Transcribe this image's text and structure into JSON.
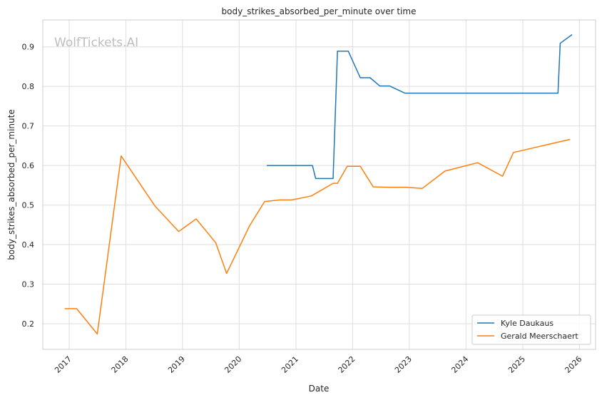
{
  "chart_data": {
    "type": "line",
    "title": "body_strikes_absorbed_per_minute over time",
    "xlabel": "Date",
    "ylabel": "body_strikes_absorbed_per_minute",
    "watermark": "WolfTickets.AI",
    "x_ticks": [
      "2017",
      "2018",
      "2019",
      "2020",
      "2021",
      "2022",
      "2023",
      "2024",
      "2025",
      "2026"
    ],
    "y_ticks": [
      "0.2",
      "0.3",
      "0.4",
      "0.5",
      "0.6",
      "0.7",
      "0.8",
      "0.9"
    ],
    "xlim": [
      "2016-07-15",
      "2026-04-15"
    ],
    "ylim": [
      0.135,
      0.968
    ],
    "grid": true,
    "legend_position": "lower-right",
    "series": [
      {
        "name": "Kyle Daukaus",
        "color": "#1f77b4",
        "points": [
          [
            "2020-06-27",
            0.6
          ],
          [
            "2021-04-17",
            0.6
          ],
          [
            "2021-05-08",
            0.567
          ],
          [
            "2021-08-28",
            0.567
          ],
          [
            "2021-09-25",
            0.889
          ],
          [
            "2021-12-04",
            0.889
          ],
          [
            "2022-02-19",
            0.822
          ],
          [
            "2022-04-23",
            0.822
          ],
          [
            "2022-06-25",
            0.801
          ],
          [
            "2022-08-27",
            0.801
          ],
          [
            "2022-12-03",
            0.783
          ],
          [
            "2025-08-16",
            0.783
          ],
          [
            "2025-08-30",
            0.909
          ],
          [
            "2025-11-15",
            0.931
          ]
        ]
      },
      {
        "name": "Gerald Meerschaert",
        "color": "#ff7f0e",
        "points": [
          [
            "2016-12-03",
            0.238
          ],
          [
            "2017-02-18",
            0.238
          ],
          [
            "2017-07-01",
            0.174
          ],
          [
            "2017-12-02",
            0.624
          ],
          [
            "2018-07-07",
            0.498
          ],
          [
            "2018-12-08",
            0.433
          ],
          [
            "2019-03-30",
            0.465
          ],
          [
            "2019-08-03",
            0.405
          ],
          [
            "2019-10-12",
            0.327
          ],
          [
            "2020-03-07",
            0.447
          ],
          [
            "2020-06-13",
            0.509
          ],
          [
            "2020-09-19",
            0.513
          ],
          [
            "2020-12-05",
            0.513
          ],
          [
            "2021-04-10",
            0.523
          ],
          [
            "2021-08-28",
            0.555
          ],
          [
            "2021-09-25",
            0.555
          ],
          [
            "2021-11-27",
            0.598
          ],
          [
            "2022-02-19",
            0.598
          ],
          [
            "2022-05-14",
            0.546
          ],
          [
            "2022-08-27",
            0.545
          ],
          [
            "2022-12-10",
            0.545
          ],
          [
            "2023-03-25",
            0.542
          ],
          [
            "2023-08-19",
            0.586
          ],
          [
            "2024-03-16",
            0.607
          ],
          [
            "2024-08-24",
            0.573
          ],
          [
            "2024-11-02",
            0.633
          ],
          [
            "2025-11-01",
            0.666
          ]
        ]
      }
    ]
  }
}
